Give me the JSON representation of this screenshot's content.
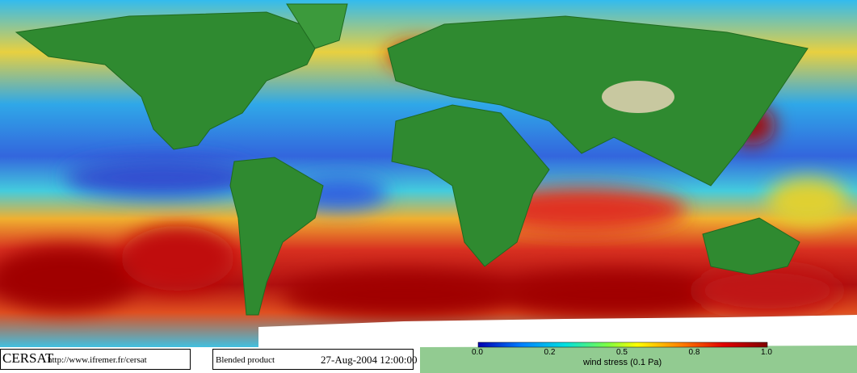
{
  "footer": {
    "logo": "CERSAT",
    "url": "http://www.ifremer.fr/cersat",
    "product": "Blended product",
    "date": "27-Aug-2004 12:00:00"
  },
  "colorbar": {
    "ticks": [
      "0.0",
      "0.2",
      "0.5",
      "0.8",
      "1.0"
    ],
    "label": "wind stress (0.1 Pa)"
  }
}
